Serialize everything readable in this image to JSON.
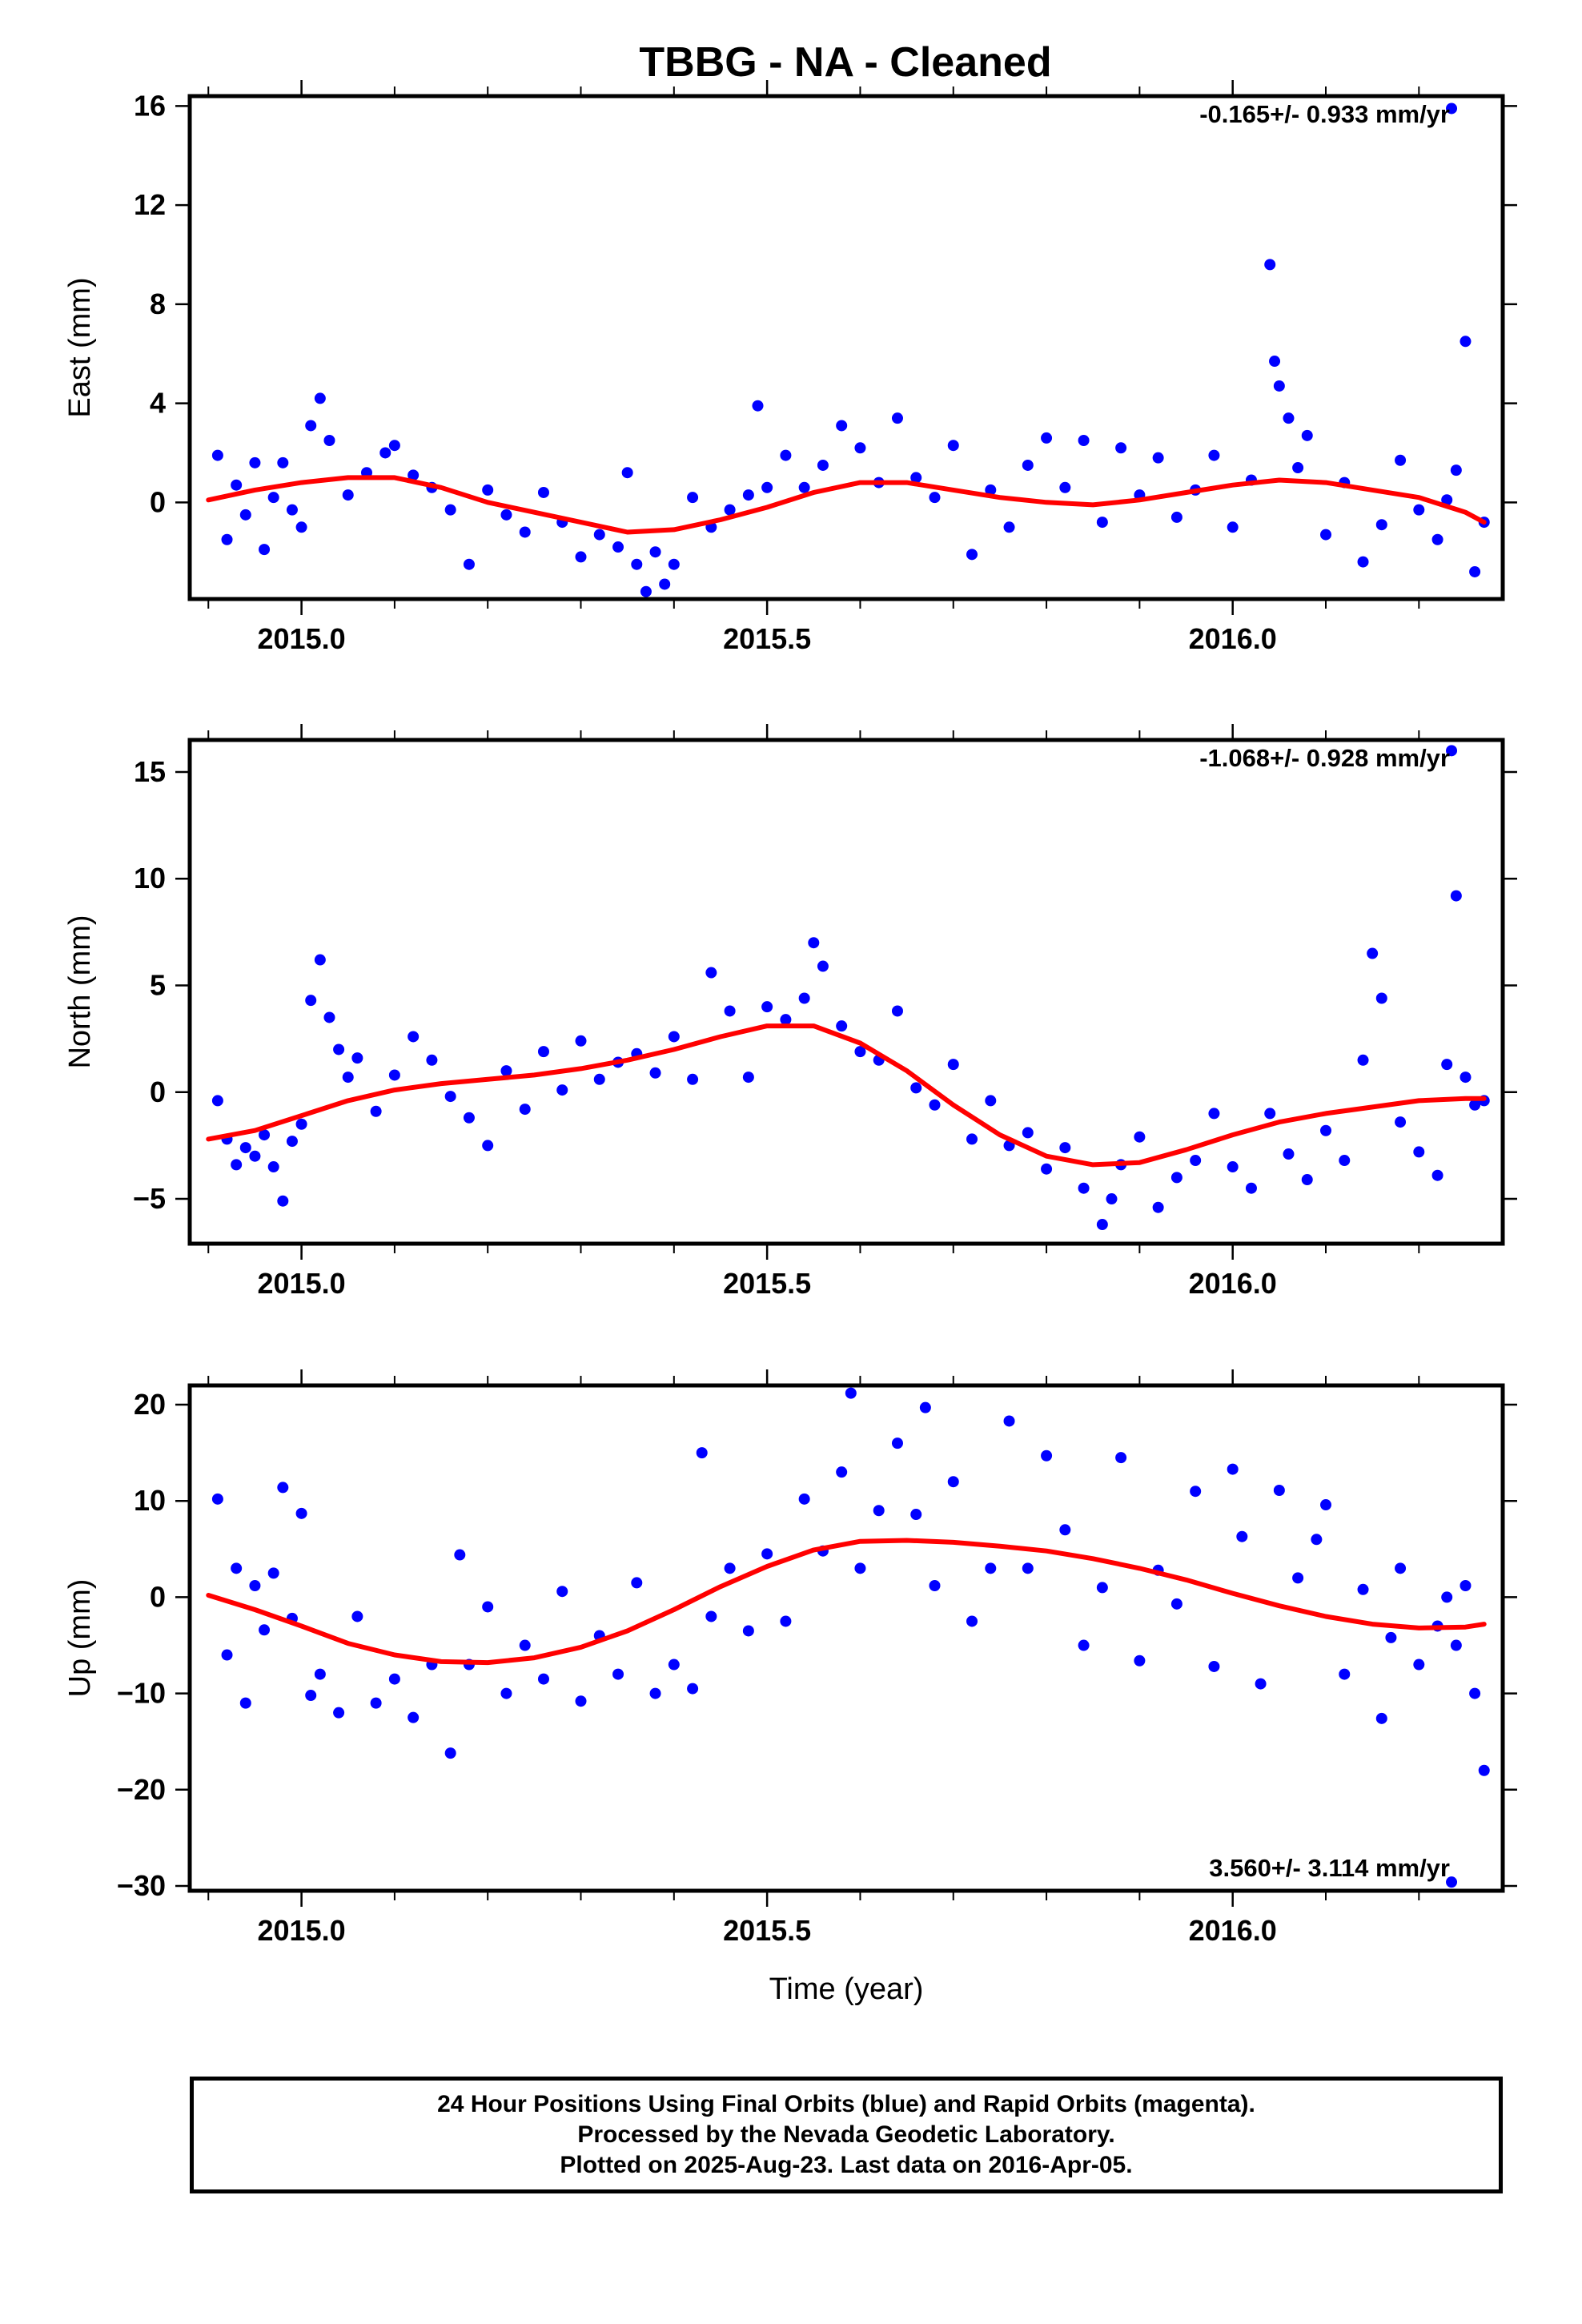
{
  "title": "TBBG  - NA - Cleaned",
  "colors": {
    "points": "#0000ff",
    "fit": "#ff0000",
    "frame": "#000000"
  },
  "chart_data": [
    {
      "type": "scatter",
      "ylabel": "East (mm)",
      "xlabel": "",
      "rate_label": "-0.165+/- 0.933 mm/yr",
      "xlim": [
        2014.88,
        2016.29
      ],
      "ylim": [
        -3.9,
        16.4
      ],
      "xticks": [
        2015.0,
        2015.5,
        2016.0
      ],
      "xtick_labels": [
        "2015.0",
        "2015.5",
        "2016.0"
      ],
      "yticks": [
        0,
        4,
        8,
        12,
        16
      ],
      "ytick_labels": [
        "0",
        "4",
        "8",
        "12",
        "16"
      ],
      "fit": {
        "x": [
          2014.9,
          2014.95,
          2015.0,
          2015.05,
          2015.1,
          2015.15,
          2015.2,
          2015.25,
          2015.3,
          2015.35,
          2015.4,
          2015.45,
          2015.5,
          2015.55,
          2015.6,
          2015.65,
          2015.7,
          2015.75,
          2015.8,
          2015.85,
          2015.9,
          2015.95,
          2016.0,
          2016.05,
          2016.1,
          2016.15,
          2016.2,
          2016.25,
          2016.27
        ],
        "y": [
          0.1,
          0.5,
          0.8,
          1.0,
          1.0,
          0.6,
          0.0,
          -0.4,
          -0.8,
          -1.2,
          -1.1,
          -0.7,
          -0.2,
          0.4,
          0.8,
          0.8,
          0.5,
          0.2,
          0.0,
          -0.1,
          0.1,
          0.4,
          0.7,
          0.9,
          0.8,
          0.5,
          0.2,
          -0.4,
          -0.8
        ]
      },
      "points": {
        "x": [
          2014.91,
          2014.92,
          2014.93,
          2014.94,
          2014.95,
          2014.96,
          2014.97,
          2014.98,
          2014.99,
          2015.0,
          2015.01,
          2015.02,
          2015.03,
          2015.05,
          2015.07,
          2015.09,
          2015.1,
          2015.12,
          2015.14,
          2015.16,
          2015.18,
          2015.2,
          2015.22,
          2015.24,
          2015.26,
          2015.28,
          2015.3,
          2015.32,
          2015.34,
          2015.35,
          2015.36,
          2015.37,
          2015.38,
          2015.39,
          2015.4,
          2015.42,
          2015.44,
          2015.46,
          2015.48,
          2015.49,
          2015.5,
          2015.52,
          2015.54,
          2015.56,
          2015.58,
          2015.6,
          2015.62,
          2015.64,
          2015.66,
          2015.68,
          2015.7,
          2015.72,
          2015.74,
          2015.76,
          2015.78,
          2015.8,
          2015.82,
          2015.84,
          2015.86,
          2015.88,
          2015.9,
          2015.92,
          2015.94,
          2015.96,
          2015.98,
          2016.0,
          2016.02,
          2016.04,
          2016.045,
          2016.05,
          2016.06,
          2016.07,
          2016.08,
          2016.1,
          2016.12,
          2016.14,
          2016.16,
          2016.18,
          2016.2,
          2016.22,
          2016.23,
          2016.235,
          2016.24,
          2016.25,
          2016.26,
          2016.27
        ],
        "y": [
          1.9,
          -1.5,
          0.7,
          -0.5,
          1.6,
          -1.9,
          0.2,
          1.6,
          -0.3,
          -1.0,
          3.1,
          4.2,
          2.5,
          0.3,
          1.2,
          2.0,
          2.3,
          1.1,
          0.6,
          -0.3,
          -2.5,
          0.5,
          -0.5,
          -1.2,
          0.4,
          -0.8,
          -2.2,
          -1.3,
          -1.8,
          1.2,
          -2.5,
          -3.6,
          -2.0,
          -3.3,
          -2.5,
          0.2,
          -1.0,
          -0.3,
          0.3,
          3.9,
          0.6,
          1.9,
          0.6,
          1.5,
          3.1,
          2.2,
          0.8,
          3.4,
          1.0,
          0.2,
          2.3,
          -2.1,
          0.5,
          -1.0,
          1.5,
          2.6,
          0.6,
          2.5,
          -0.8,
          2.2,
          0.3,
          1.8,
          -0.6,
          0.5,
          1.9,
          -1.0,
          0.9,
          9.6,
          5.7,
          4.7,
          3.4,
          1.4,
          2.7,
          -1.3,
          0.8,
          -2.4,
          -0.9,
          1.7,
          -0.3,
          -1.5,
          0.1,
          15.9,
          1.3,
          6.5,
          -2.8,
          -0.8
        ]
      }
    },
    {
      "type": "scatter",
      "ylabel": "North (mm)",
      "xlabel": "",
      "rate_label": "-1.068+/- 0.928 mm/yr",
      "xlim": [
        2014.88,
        2016.29
      ],
      "ylim": [
        -7.1,
        16.5
      ],
      "xticks": [
        2015.0,
        2015.5,
        2016.0
      ],
      "xtick_labels": [
        "2015.0",
        "2015.5",
        "2016.0"
      ],
      "yticks": [
        -5,
        0,
        5,
        10,
        15
      ],
      "ytick_labels": [
        "−5",
        "0",
        "5",
        "10",
        "15"
      ],
      "fit": {
        "x": [
          2014.9,
          2014.95,
          2015.0,
          2015.05,
          2015.1,
          2015.15,
          2015.2,
          2015.25,
          2015.3,
          2015.35,
          2015.4,
          2015.45,
          2015.5,
          2015.55,
          2015.6,
          2015.65,
          2015.7,
          2015.75,
          2015.8,
          2015.85,
          2015.9,
          2015.95,
          2016.0,
          2016.05,
          2016.1,
          2016.15,
          2016.2,
          2016.25,
          2016.27
        ],
        "y": [
          -2.2,
          -1.8,
          -1.1,
          -0.4,
          0.1,
          0.4,
          0.6,
          0.8,
          1.1,
          1.5,
          2.0,
          2.6,
          3.1,
          3.1,
          2.3,
          1.0,
          -0.6,
          -2.0,
          -3.0,
          -3.4,
          -3.3,
          -2.7,
          -2.0,
          -1.4,
          -1.0,
          -0.7,
          -0.4,
          -0.3,
          -0.3
        ]
      },
      "points": {
        "x": [
          2014.91,
          2014.92,
          2014.93,
          2014.94,
          2014.95,
          2014.96,
          2014.97,
          2014.98,
          2014.99,
          2015.0,
          2015.01,
          2015.02,
          2015.03,
          2015.04,
          2015.05,
          2015.06,
          2015.08,
          2015.1,
          2015.12,
          2015.14,
          2015.16,
          2015.18,
          2015.2,
          2015.22,
          2015.24,
          2015.26,
          2015.28,
          2015.3,
          2015.32,
          2015.34,
          2015.36,
          2015.38,
          2015.4,
          2015.42,
          2015.44,
          2015.46,
          2015.48,
          2015.5,
          2015.52,
          2015.54,
          2015.55,
          2015.56,
          2015.58,
          2015.6,
          2015.62,
          2015.64,
          2015.66,
          2015.68,
          2015.7,
          2015.72,
          2015.74,
          2015.76,
          2015.78,
          2015.8,
          2015.82,
          2015.84,
          2015.86,
          2015.87,
          2015.88,
          2015.9,
          2015.92,
          2015.94,
          2015.96,
          2015.98,
          2016.0,
          2016.02,
          2016.04,
          2016.06,
          2016.08,
          2016.1,
          2016.12,
          2016.14,
          2016.15,
          2016.16,
          2016.18,
          2016.2,
          2016.22,
          2016.23,
          2016.235,
          2016.24,
          2016.25,
          2016.26,
          2016.27
        ],
        "y": [
          -0.4,
          -2.2,
          -3.4,
          -2.6,
          -3.0,
          -2.0,
          -3.5,
          -5.1,
          -2.3,
          -1.5,
          4.3,
          6.2,
          3.5,
          2.0,
          0.7,
          1.6,
          -0.9,
          0.8,
          2.6,
          1.5,
          -0.2,
          -1.2,
          -2.5,
          1.0,
          -0.8,
          1.9,
          0.1,
          2.4,
          0.6,
          1.4,
          1.8,
          0.9,
          2.6,
          0.6,
          5.6,
          3.8,
          0.7,
          4.0,
          3.4,
          4.4,
          7.0,
          5.9,
          3.1,
          1.9,
          1.5,
          3.8,
          0.2,
          -0.6,
          1.3,
          -2.2,
          -0.4,
          -2.5,
          -1.9,
          -3.6,
          -2.6,
          -4.5,
          -6.2,
          -5.0,
          -3.4,
          -2.1,
          -5.4,
          -4.0,
          -3.2,
          -1.0,
          -3.5,
          -4.5,
          -1.0,
          -2.9,
          -4.1,
          -1.8,
          -3.2,
          1.5,
          6.5,
          4.4,
          -1.4,
          -2.8,
          -3.9,
          1.3,
          16.0,
          9.2,
          0.7,
          -0.6,
          -0.4
        ]
      }
    },
    {
      "type": "scatter",
      "ylabel": "Up (mm)",
      "xlabel": "Time (year)",
      "rate_label": "3.560+/- 3.114 mm/yr",
      "xlim": [
        2014.88,
        2016.29
      ],
      "ylim": [
        -30.5,
        22.0
      ],
      "xticks": [
        2015.0,
        2015.5,
        2016.0
      ],
      "xtick_labels": [
        "2015.0",
        "2015.5",
        "2016.0"
      ],
      "yticks": [
        -30,
        -20,
        -10,
        0,
        10,
        20
      ],
      "ytick_labels": [
        "−30",
        "−20",
        "−10",
        "0",
        "10",
        "20"
      ],
      "fit": {
        "x": [
          2014.9,
          2014.95,
          2015.0,
          2015.05,
          2015.1,
          2015.15,
          2015.2,
          2015.25,
          2015.3,
          2015.35,
          2015.4,
          2015.45,
          2015.5,
          2015.55,
          2015.6,
          2015.65,
          2015.7,
          2015.75,
          2015.8,
          2015.85,
          2015.9,
          2015.95,
          2016.0,
          2016.05,
          2016.1,
          2016.15,
          2016.2,
          2016.25,
          2016.27
        ],
        "y": [
          0.2,
          -1.3,
          -3.0,
          -4.8,
          -6.0,
          -6.7,
          -6.8,
          -6.3,
          -5.2,
          -3.5,
          -1.3,
          1.1,
          3.2,
          4.9,
          5.8,
          5.9,
          5.7,
          5.3,
          4.8,
          4.0,
          3.0,
          1.8,
          0.4,
          -0.9,
          -2.0,
          -2.8,
          -3.2,
          -3.1,
          -2.8
        ]
      },
      "points": {
        "x": [
          2014.91,
          2014.92,
          2014.93,
          2014.94,
          2014.95,
          2014.96,
          2014.97,
          2014.98,
          2014.99,
          2015.0,
          2015.01,
          2015.02,
          2015.04,
          2015.06,
          2015.08,
          2015.1,
          2015.12,
          2015.14,
          2015.16,
          2015.17,
          2015.18,
          2015.2,
          2015.22,
          2015.24,
          2015.26,
          2015.28,
          2015.3,
          2015.32,
          2015.34,
          2015.36,
          2015.38,
          2015.4,
          2015.42,
          2015.43,
          2015.44,
          2015.46,
          2015.48,
          2015.5,
          2015.52,
          2015.54,
          2015.56,
          2015.58,
          2015.59,
          2015.6,
          2015.62,
          2015.64,
          2015.66,
          2015.67,
          2015.68,
          2015.7,
          2015.72,
          2015.74,
          2015.76,
          2015.78,
          2015.8,
          2015.82,
          2015.84,
          2015.86,
          2015.88,
          2015.9,
          2015.92,
          2015.94,
          2015.96,
          2015.98,
          2016.0,
          2016.01,
          2016.03,
          2016.05,
          2016.07,
          2016.09,
          2016.1,
          2016.12,
          2016.14,
          2016.16,
          2016.17,
          2016.18,
          2016.2,
          2016.22,
          2016.23,
          2016.235,
          2016.24,
          2016.25,
          2016.26,
          2016.27
        ],
        "y": [
          10.2,
          -6.0,
          3.0,
          -11.0,
          1.2,
          -3.4,
          2.5,
          11.4,
          -2.2,
          8.7,
          -10.2,
          -8.0,
          -12.0,
          -2.0,
          -11.0,
          -8.5,
          -12.5,
          -7.0,
          -16.2,
          4.4,
          -7.0,
          -1.0,
          -10.0,
          -5.0,
          -8.5,
          0.6,
          -10.8,
          -4.0,
          -8.0,
          1.5,
          -10.0,
          -7.0,
          -9.5,
          15.0,
          -2.0,
          3.0,
          -3.5,
          4.5,
          -2.5,
          10.2,
          4.8,
          13.0,
          21.2,
          3.0,
          9.0,
          16.0,
          8.6,
          19.7,
          1.2,
          12.0,
          -2.5,
          3.0,
          18.3,
          3.0,
          14.7,
          7.0,
          -5.0,
          1.0,
          14.5,
          -6.6,
          2.8,
          -0.7,
          11.0,
          -7.2,
          13.3,
          6.3,
          -9.0,
          11.1,
          2.0,
          6.0,
          9.6,
          -8.0,
          0.8,
          -12.6,
          -4.2,
          3.0,
          -7.0,
          -3.0,
          0.0,
          -29.6,
          -5.0,
          1.2,
          -10.0,
          -18.0
        ]
      }
    }
  ],
  "footer": {
    "line1": "24 Hour Positions Using Final Orbits (blue) and Rapid Orbits (magenta).",
    "line2": "Processed by the Nevada Geodetic Laboratory.",
    "line3": "Plotted on 2025-Aug-23. Last data on 2016-Apr-05."
  }
}
